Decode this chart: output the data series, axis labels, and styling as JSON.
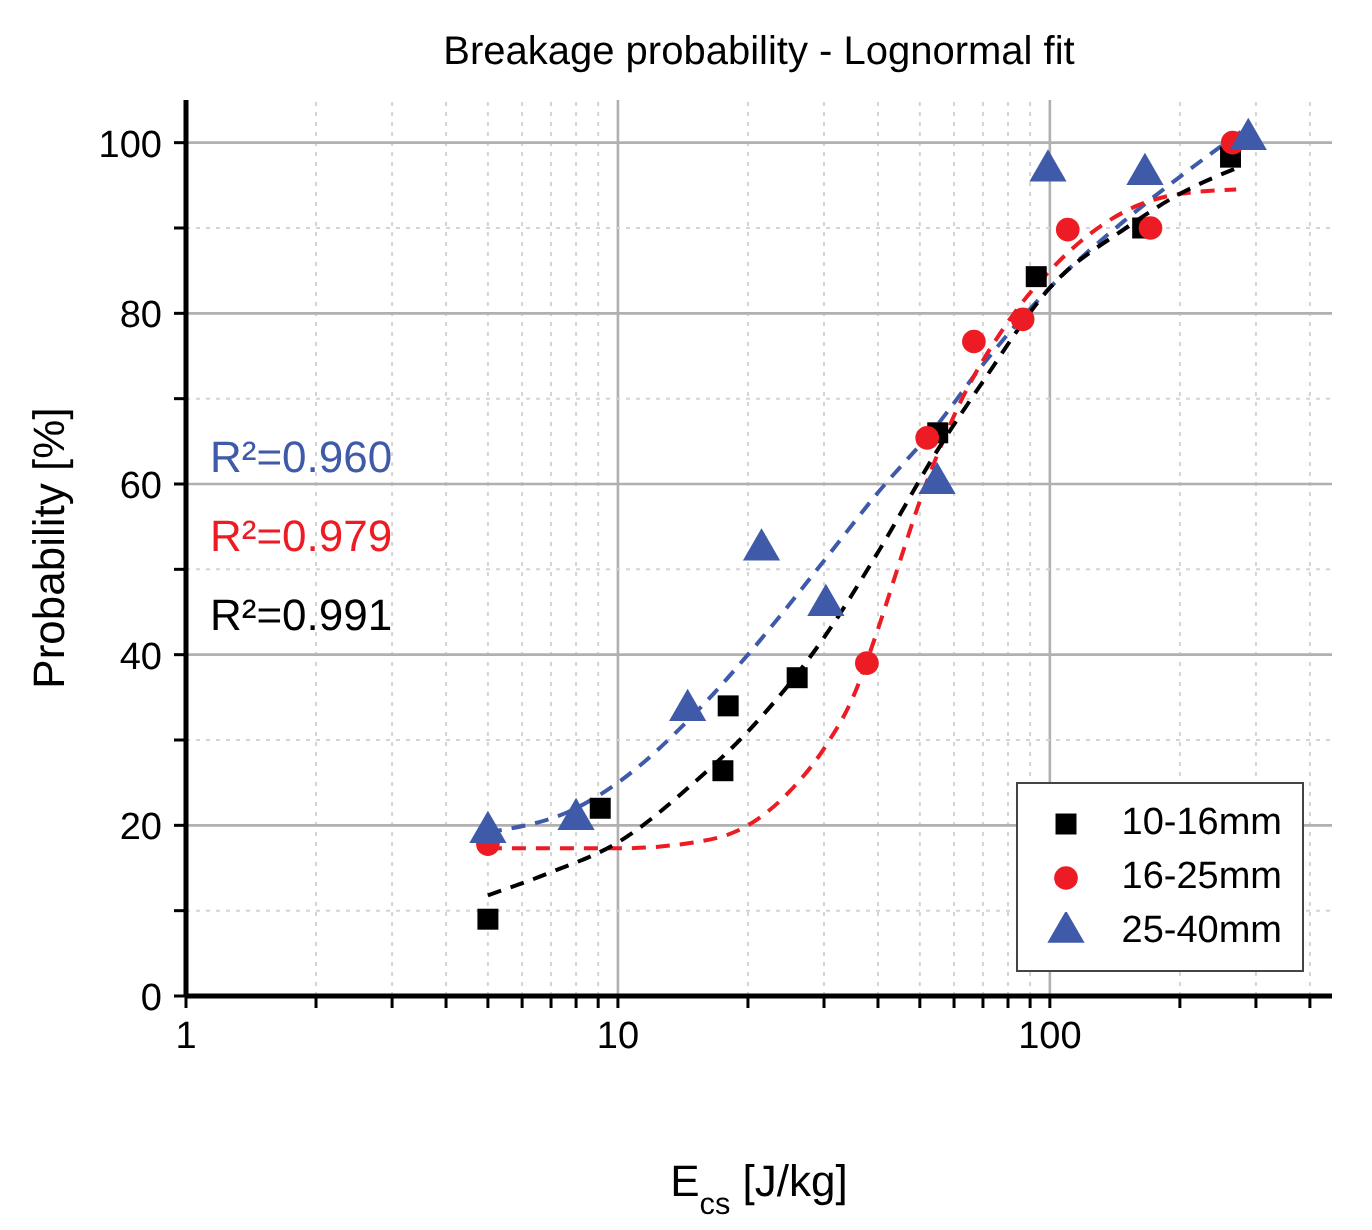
{
  "chart_data": {
    "type": "scatter",
    "title": "Breakage probability - Lognormal fit",
    "xlabel": "E$_{cs}$ [J/kg]",
    "ylabel": "Probability [%]",
    "log": "x",
    "xlim": [
      1,
      450
    ],
    "ylim": [
      0,
      105
    ],
    "xticks": [
      1,
      {
        "value": 2,
        "label": null
      },
      {
        "value": 3,
        "label": null
      },
      {
        "value": 4,
        "label": null
      },
      {
        "value": 5,
        "label": null
      },
      {
        "value": 6,
        "label": null
      },
      {
        "value": 7,
        "label": null
      },
      {
        "value": 8,
        "label": null
      },
      {
        "value": 9,
        "label": null
      },
      10,
      {
        "value": 20,
        "label": null
      },
      {
        "value": 30,
        "label": null
      },
      {
        "value": 40,
        "label": null
      },
      {
        "value": 50,
        "label": null
      },
      {
        "value": 60,
        "label": null
      },
      {
        "value": 70,
        "label": null
      },
      {
        "value": 80,
        "label": null
      },
      {
        "value": 90,
        "label": null
      },
      100,
      {
        "value": 200,
        "label": null
      },
      {
        "value": 300,
        "label": null
      },
      {
        "value": 400,
        "label": null
      }
    ],
    "yticks": [
      0,
      {
        "value": 10,
        "label": null
      },
      20,
      {
        "value": 30,
        "label": null
      },
      40,
      {
        "value": 50,
        "label": null
      },
      60,
      {
        "value": 70,
        "label": null
      },
      80,
      {
        "value": 90,
        "label": null
      },
      100
    ],
    "grid": true,
    "legend": "bottom right",
    "annotations": [
      "R²=0.960",
      "R²=0.979",
      "R²=0.991"
    ],
    "series": [
      {
        "name": "10-16mm",
        "marker": "square",
        "color": "#000000",
        "x": [
          5,
          9.1,
          17.5,
          18,
          26,
          55,
          93,
          164,
          262
        ],
        "values": [
          9,
          22,
          26.4,
          34,
          37.3,
          66,
          84.3,
          90,
          98.3
        ]
      },
      {
        "name": "16-25mm",
        "marker": "circle",
        "color": "#ed1c24",
        "x": [
          5,
          37.7,
          52,
          66.7,
          86.5,
          110,
          171,
          265
        ],
        "values": [
          17.8,
          39,
          65.4,
          76.7,
          79.3,
          89.8,
          90,
          100
        ]
      },
      {
        "name": "25-40mm",
        "marker": "triangle",
        "color": "#3f5aa8",
        "x": [
          5,
          8,
          14.5,
          21.5,
          30.3,
          54.8,
          99,
          166,
          288
        ],
        "values": [
          19.2,
          20.7,
          33.5,
          52.3,
          45.8,
          60.1,
          96.7,
          96.3,
          100.4
        ]
      },
      {
        "type": "line",
        "marker": "none",
        "line_style": "dashed",
        "color": "#3f5aa8",
        "x": [
          5,
          8,
          10,
          15,
          20,
          30,
          40,
          55,
          70,
          100,
          150,
          200,
          290
        ],
        "values": [
          19.2,
          22,
          25,
          33,
          40,
          51,
          59,
          67,
          74,
          83,
          91,
          96,
          102
        ]
      },
      {
        "type": "line",
        "marker": "none",
        "line_style": "dashed",
        "color": "#ed1c24",
        "x": [
          5,
          10,
          15,
          20,
          25,
          30,
          35,
          40,
          45,
          50,
          60,
          80,
          100,
          150,
          200,
          270
        ],
        "values": [
          17.3,
          17.3,
          18,
          20,
          24,
          29,
          35,
          43,
          51,
          58,
          68,
          79,
          85,
          92,
          94,
          94.5
        ]
      },
      {
        "type": "line",
        "marker": "none",
        "line_style": "dashed",
        "color": "#000000",
        "x": [
          5,
          7,
          10,
          15,
          20,
          30,
          40,
          55,
          70,
          100,
          150,
          200,
          270
        ],
        "values": [
          11.8,
          14.5,
          18,
          25,
          31,
          42,
          52,
          64,
          72,
          83,
          90,
          94,
          97
        ]
      }
    ]
  }
}
